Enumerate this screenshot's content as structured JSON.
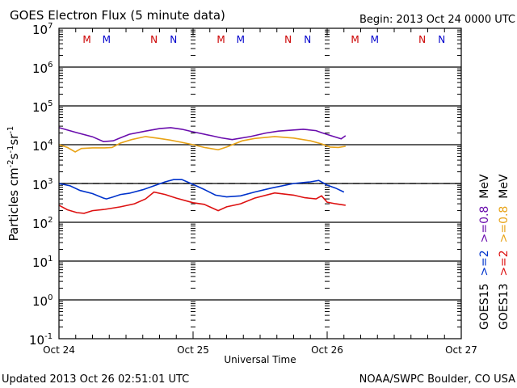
{
  "chart_data": {
    "type": "line",
    "title": "GOES Electron Flux (5 minute data)",
    "subtitle": "Begin: 2013 Oct 24 0000 UTC",
    "xlabel": "Universal Time",
    "ylabel": "Particles cm-2s-1sr-1",
    "yscale": "log",
    "ylim": [
      0.1,
      10000000
    ],
    "xlim_hours": [
      0,
      72
    ],
    "x_unit": "hours since 2013 Oct 24 0000 UTC",
    "x_ticks": [
      {
        "hours": 0,
        "label": "Oct 24"
      },
      {
        "hours": 24,
        "label": "Oct 25"
      },
      {
        "hours": 48,
        "label": "Oct 26"
      },
      {
        "hours": 72,
        "label": "Oct 27"
      }
    ],
    "y_ticks": [
      {
        "exp": 7,
        "base": "10",
        "sup": "7"
      },
      {
        "exp": 6,
        "base": "10",
        "sup": "6"
      },
      {
        "exp": 5,
        "base": "10",
        "sup": "5"
      },
      {
        "exp": 4,
        "base": "10",
        "sup": "4"
      },
      {
        "exp": 3,
        "base": "10",
        "sup": "3"
      },
      {
        "exp": 2,
        "base": "10",
        "sup": "2"
      },
      {
        "exp": 1,
        "base": "10",
        "sup": "1"
      },
      {
        "exp": 0,
        "base": "10",
        "sup": "0"
      },
      {
        "exp": -1,
        "base": "10",
        "sup": "-1"
      }
    ],
    "threshold_line": {
      "value": 1000,
      "style": "dashed"
    },
    "grid": true,
    "markers": [
      {
        "hours": 5,
        "label": "M",
        "color": "#cc0000"
      },
      {
        "hours": 8.5,
        "label": "M",
        "color": "#0000cc"
      },
      {
        "hours": 17,
        "label": "N",
        "color": "#cc0000"
      },
      {
        "hours": 20.5,
        "label": "N",
        "color": "#0000cc"
      },
      {
        "hours": 29,
        "label": "M",
        "color": "#cc0000"
      },
      {
        "hours": 32.5,
        "label": "M",
        "color": "#0000cc"
      },
      {
        "hours": 41,
        "label": "N",
        "color": "#cc0000"
      },
      {
        "hours": 44.5,
        "label": "N",
        "color": "#0000cc"
      },
      {
        "hours": 53,
        "label": "M",
        "color": "#cc0000"
      },
      {
        "hours": 56.5,
        "label": "M",
        "color": "#0000cc"
      },
      {
        "hours": 65,
        "label": "N",
        "color": "#cc0000"
      },
      {
        "hours": 68.5,
        "label": "N",
        "color": "#0000cc"
      }
    ],
    "series": [
      {
        "name": "GOES15 >=0.8 MeV",
        "color": "#6a0dad",
        "x": [
          0,
          3.2,
          6,
          8,
          9.7,
          11,
          12.6,
          15.5,
          18,
          20,
          22,
          24,
          27.3,
          29,
          31,
          34.3,
          37,
          39.3,
          43.7,
          46,
          47,
          48.7,
          50.5,
          51.3
        ],
        "y": [
          27500,
          20400,
          16000,
          12000,
          12600,
          15000,
          18600,
          22400,
          26000,
          27500,
          25000,
          21400,
          17000,
          15000,
          13500,
          16200,
          20000,
          22400,
          25000,
          23000,
          20400,
          17000,
          14100,
          17000
        ]
      },
      {
        "name": "GOES13 >=0.8 MeV",
        "color": "#e8a317",
        "x": [
          0,
          1.5,
          2.9,
          4,
          6,
          8.2,
          9.5,
          11,
          13,
          15.5,
          18,
          19.8,
          22,
          24,
          26,
          28.5,
          30,
          32.8,
          35,
          38.6,
          42,
          45,
          47,
          48.5,
          50,
          51.3
        ],
        "y": [
          10000,
          8500,
          6500,
          8000,
          8300,
          8300,
          8500,
          11000,
          13500,
          16200,
          14500,
          13200,
          11500,
          10000,
          8500,
          7400,
          8700,
          12600,
          14500,
          16200,
          14800,
          12600,
          10500,
          8700,
          8500,
          9100
        ]
      },
      {
        "name": "GOES15 >=2 MeV",
        "color": "#0033cc",
        "x": [
          0,
          2,
          3.8,
          6,
          8,
          8.5,
          9.7,
          11,
          12.6,
          15,
          17,
          19,
          20.5,
          22,
          24,
          26,
          28,
          30,
          32.5,
          35,
          38,
          42,
          45,
          46.5,
          48,
          49.5,
          51
        ],
        "y": [
          1000,
          870,
          660,
          550,
          420,
          400,
          450,
          520,
          560,
          690,
          870,
          1100,
          1260,
          1260,
          950,
          700,
          500,
          450,
          480,
          600,
          760,
          1000,
          1100,
          1200,
          910,
          760,
          600
        ]
      },
      {
        "name": "GOES13 >=2 MeV",
        "color": "#dd1111",
        "x": [
          0,
          1.5,
          3.2,
          4.5,
          6,
          8.2,
          11,
          13.5,
          15.5,
          17,
          19,
          21,
          24,
          26,
          28.5,
          30,
          32.5,
          35,
          38.6,
          42,
          44,
          46,
          47,
          48,
          49.5,
          51.3
        ],
        "y": [
          275,
          210,
          178,
          170,
          200,
          215,
          250,
          300,
          400,
          600,
          520,
          420,
          320,
          290,
          200,
          250,
          300,
          420,
          570,
          500,
          430,
          400,
          480,
          330,
          300,
          275
        ]
      }
    ]
  },
  "header": {
    "title": "GOES Electron Flux (5 minute data)",
    "begin": "Begin: 2013 Oct 24 0000 UTC"
  },
  "axes": {
    "ylabel_text": "Particles cm",
    "ylabel_sup1": "-2",
    "ylabel_mid": "s",
    "ylabel_sup2": "-1",
    "ylabel_end": "sr",
    "ylabel_sup3": "-1",
    "xlabel": "Universal Time"
  },
  "legend": {
    "col1": [
      {
        "text": "GOES15",
        "color": "#000000"
      },
      {
        "text": ">=2",
        "color": "#0033cc"
      },
      {
        "text": ">=0.8",
        "color": "#6a0dad"
      },
      {
        "text": "MeV",
        "color": "#000000"
      }
    ],
    "col2": [
      {
        "text": "GOES13",
        "color": "#000000"
      },
      {
        "text": ">=2",
        "color": "#dd1111"
      },
      {
        "text": ">=0.8",
        "color": "#e8a317"
      },
      {
        "text": "MeV",
        "color": "#000000"
      }
    ]
  },
  "footer": {
    "updated": "Updated 2013 Oct 26 02:51:01 UTC",
    "credit": "NOAA/SWPC Boulder, CO USA"
  }
}
